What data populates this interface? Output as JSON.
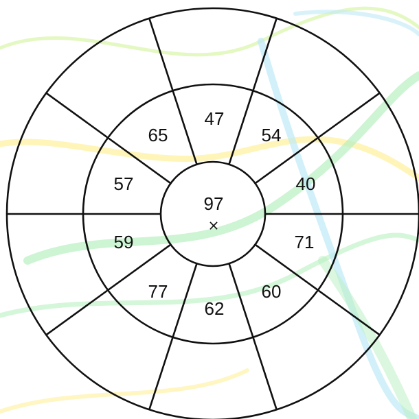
{
  "center": {
    "value": "97",
    "marker": "×"
  },
  "inner_ring": [
    {
      "id": "upper",
      "value": "47"
    },
    {
      "id": "upper-right",
      "value": "54"
    },
    {
      "id": "right-upper",
      "value": "40"
    },
    {
      "id": "right-lower",
      "value": "71"
    },
    {
      "id": "lower-right",
      "value": "60"
    },
    {
      "id": "lower",
      "value": "62"
    },
    {
      "id": "lower-left",
      "value": "77"
    },
    {
      "id": "left-lower",
      "value": "59"
    },
    {
      "id": "left-upper",
      "value": "57"
    },
    {
      "id": "upper-left",
      "value": "65"
    }
  ],
  "colors": {
    "line": "#111111",
    "background_waves": [
      "#b8f0c0",
      "#fff2a8",
      "#bfe9f7",
      "#d9f5a8"
    ]
  }
}
